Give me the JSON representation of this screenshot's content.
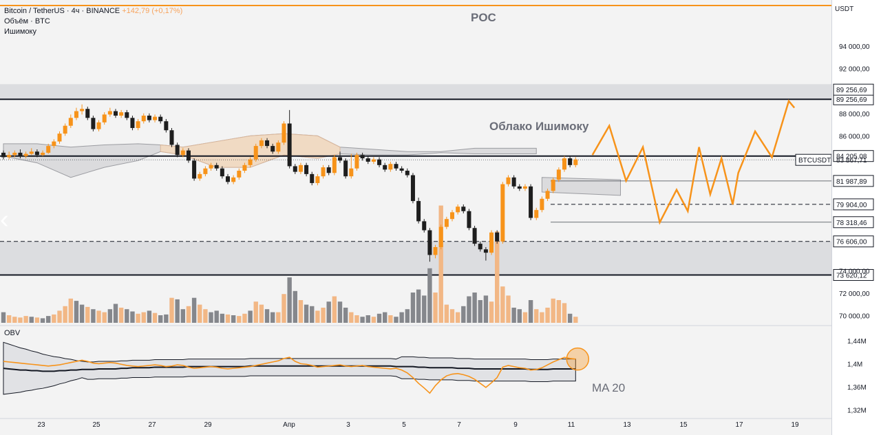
{
  "header": {
    "symbol": "Bitcoin / TetherUS · 4ч · BINANCE",
    "change": "+142,79 (+0,17%)",
    "volume_label": "Объём · BTC",
    "ichimoku_label": "Ишимоку"
  },
  "annotations": {
    "poc": "POC",
    "cloud": "Облако Ишимоку",
    "ma": "MA 20",
    "obv": "OBV"
  },
  "currency": "USDT",
  "chart_data": {
    "type": "line",
    "price_ticks": [
      "94 000,00",
      "92 000,00",
      "88 000,00",
      "86 000,00",
      "72 000,00",
      "70 000,00"
    ],
    "price_ylim": [
      69300,
      96500
    ],
    "levels": [
      {
        "value": 89256.69,
        "label": "89 256,69",
        "style": "solid"
      },
      {
        "value": 84205.08,
        "label": "84 205,08",
        "style": "solid"
      },
      {
        "value": 81987.89,
        "label": "81 987,89",
        "style": "solid"
      },
      {
        "value": 79904.0,
        "label": "79 904,00",
        "style": "dashed"
      },
      {
        "value": 78318.46,
        "label": "78 318,46",
        "style": "solid"
      },
      {
        "value": 76606.0,
        "label": "76 606,00",
        "style": "dashed"
      },
      {
        "value": 73620.12,
        "label": "73 620,12",
        "style": "solid"
      }
    ],
    "last_price": {
      "symbol": "BTCUSDT",
      "value": 83867.71,
      "label": "83 867,71"
    },
    "extra_label": "89 256,69",
    "partial_label": "74 000,00",
    "obv_ticks": [
      "1,44M",
      "1,4M",
      "1,36M",
      "1,32M"
    ],
    "obv_ylim": [
      1.31,
      1.46
    ],
    "x_ticks": [
      "23",
      "25",
      "27",
      "29",
      "Апр",
      "3",
      "5",
      "7",
      "9",
      "11",
      "13",
      "15",
      "17",
      "19"
    ],
    "candles": [
      [
        84500,
        84100,
        84700,
        83900
      ],
      [
        84100,
        84300,
        84600,
        83900
      ],
      [
        84300,
        84500,
        84700,
        84100
      ],
      [
        84500,
        84200,
        84800,
        84000
      ],
      [
        84200,
        84400,
        84600,
        84000
      ],
      [
        84400,
        84600,
        84900,
        84300
      ],
      [
        84600,
        84300,
        84800,
        84100
      ],
      [
        84300,
        84500,
        84700,
        84200
      ],
      [
        84500,
        85100,
        85300,
        84400
      ],
      [
        85100,
        85500,
        85700,
        84900
      ],
      [
        85500,
        86200,
        86400,
        85300
      ],
      [
        86200,
        86900,
        87100,
        86000
      ],
      [
        86900,
        87600,
        87900,
        86700
      ],
      [
        87600,
        88200,
        88500,
        87400
      ],
      [
        88200,
        88400,
        88800,
        87900
      ],
      [
        88400,
        87600,
        88600,
        87400
      ],
      [
        87600,
        86600,
        87800,
        86400
      ],
      [
        86600,
        87200,
        87400,
        86400
      ],
      [
        87200,
        87900,
        88100,
        87000
      ],
      [
        87900,
        88200,
        88500,
        87700
      ],
      [
        88200,
        87800,
        88400,
        87600
      ],
      [
        87800,
        88100,
        88300,
        87600
      ],
      [
        88100,
        87600,
        88300,
        87400
      ],
      [
        87600,
        86700,
        87800,
        86500
      ],
      [
        86700,
        87300,
        87500,
        86500
      ],
      [
        87300,
        87800,
        88000,
        87100
      ],
      [
        87800,
        87400,
        88000,
        87200
      ],
      [
        87400,
        87700,
        87900,
        87200
      ],
      [
        87700,
        87300,
        87900,
        87100
      ],
      [
        87300,
        86500,
        87500,
        86300
      ],
      [
        86500,
        85200,
        86700,
        85000
      ],
      [
        85200,
        84300,
        85400,
        84100
      ],
      [
        84300,
        84700,
        84900,
        84100
      ],
      [
        84700,
        83800,
        84900,
        83600
      ],
      [
        83800,
        82200,
        84000,
        82000
      ],
      [
        82200,
        82600,
        82800,
        82000
      ],
      [
        82600,
        83100,
        83300,
        82400
      ],
      [
        83100,
        83400,
        83600,
        82900
      ],
      [
        83400,
        83100,
        83600,
        82900
      ],
      [
        83100,
        82400,
        83300,
        82200
      ],
      [
        82400,
        81900,
        82600,
        81700
      ],
      [
        81900,
        82300,
        82500,
        81700
      ],
      [
        82300,
        82900,
        83100,
        82100
      ],
      [
        82900,
        83400,
        83600,
        82700
      ],
      [
        83400,
        83900,
        84100,
        83200
      ],
      [
        83900,
        85100,
        85300,
        83700
      ],
      [
        85100,
        85600,
        85800,
        84900
      ],
      [
        85600,
        85100,
        85800,
        84900
      ],
      [
        85100,
        84600,
        85300,
        84400
      ],
      [
        84600,
        85400,
        85600,
        84400
      ],
      [
        85400,
        87100,
        87300,
        85200
      ],
      [
        87100,
        83300,
        88300,
        83100
      ],
      [
        83300,
        82800,
        83500,
        82600
      ],
      [
        82800,
        83400,
        83600,
        82600
      ],
      [
        83400,
        82600,
        83600,
        82400
      ],
      [
        82600,
        81800,
        82800,
        81600
      ],
      [
        81800,
        82400,
        82600,
        81600
      ],
      [
        82400,
        83200,
        83400,
        82200
      ],
      [
        83200,
        82700,
        83400,
        82500
      ],
      [
        82700,
        84100,
        84300,
        82500
      ],
      [
        84100,
        83800,
        84600,
        83600
      ],
      [
        83800,
        82400,
        84000,
        82200
      ],
      [
        82400,
        83100,
        84400,
        82200
      ],
      [
        83100,
        84300,
        84500,
        82900
      ],
      [
        84300,
        84000,
        84500,
        83800
      ],
      [
        84000,
        83700,
        84200,
        83500
      ],
      [
        83700,
        83900,
        84100,
        83500
      ],
      [
        83900,
        83400,
        84100,
        83200
      ],
      [
        83400,
        83000,
        83600,
        82800
      ],
      [
        83000,
        83500,
        83700,
        82800
      ],
      [
        83500,
        83100,
        83700,
        82900
      ],
      [
        83100,
        82900,
        83300,
        82700
      ],
      [
        82900,
        82500,
        83100,
        82300
      ],
      [
        82500,
        80200,
        82700,
        80000
      ],
      [
        80200,
        78400,
        80500,
        78200
      ],
      [
        78400,
        77600,
        78600,
        77400
      ],
      [
        77600,
        75400,
        77800,
        74800
      ],
      [
        75400,
        76100,
        76300,
        75100
      ],
      [
        76100,
        77900,
        78100,
        75900
      ],
      [
        77900,
        78600,
        78800,
        77700
      ],
      [
        78600,
        79200,
        79400,
        78400
      ],
      [
        79200,
        79700,
        79900,
        79000
      ],
      [
        79700,
        79300,
        79900,
        79100
      ],
      [
        79300,
        77800,
        79500,
        77600
      ],
      [
        77800,
        76400,
        78000,
        76200
      ],
      [
        76400,
        75900,
        76600,
        75700
      ],
      [
        75900,
        75600,
        76100,
        74900
      ],
      [
        75600,
        77400,
        77600,
        75400
      ],
      [
        77400,
        76600,
        77600,
        76400
      ],
      [
        76600,
        81700,
        81900,
        76400
      ],
      [
        81700,
        82300,
        82500,
        81500
      ],
      [
        82300,
        81500,
        82500,
        81300
      ],
      [
        81500,
        81300,
        81700,
        81100
      ],
      [
        81300,
        81500,
        81700,
        81100
      ],
      [
        81500,
        78700,
        81700,
        78500
      ],
      [
        78700,
        79400,
        79600,
        78500
      ],
      [
        79400,
        80400,
        80600,
        79200
      ],
      [
        80400,
        81100,
        81300,
        80200
      ],
      [
        81100,
        82100,
        82300,
        80900
      ],
      [
        82100,
        83000,
        83200,
        81900
      ],
      [
        83000,
        84000,
        84200,
        82800
      ],
      [
        84000,
        83400,
        84200,
        83200
      ],
      [
        83400,
        83900,
        84100,
        83200
      ]
    ],
    "volume": [
      [
        0.14,
        "dn"
      ],
      [
        0.1,
        "up"
      ],
      [
        0.08,
        "up"
      ],
      [
        0.07,
        "up"
      ],
      [
        0.09,
        "up"
      ],
      [
        0.08,
        "dn"
      ],
      [
        0.07,
        "up"
      ],
      [
        0.06,
        "dn"
      ],
      [
        0.09,
        "dn"
      ],
      [
        0.11,
        "up"
      ],
      [
        0.16,
        "up"
      ],
      [
        0.22,
        "up"
      ],
      [
        0.32,
        "up"
      ],
      [
        0.29,
        "dn"
      ],
      [
        0.24,
        "dn"
      ],
      [
        0.21,
        "up"
      ],
      [
        0.18,
        "dn"
      ],
      [
        0.16,
        "up"
      ],
      [
        0.14,
        "up"
      ],
      [
        0.18,
        "dn"
      ],
      [
        0.25,
        "dn"
      ],
      [
        0.2,
        "up"
      ],
      [
        0.18,
        "dn"
      ],
      [
        0.15,
        "dn"
      ],
      [
        0.12,
        "up"
      ],
      [
        0.14,
        "up"
      ],
      [
        0.16,
        "dn"
      ],
      [
        0.13,
        "up"
      ],
      [
        0.1,
        "dn"
      ],
      [
        0.11,
        "dn"
      ],
      [
        0.33,
        "up"
      ],
      [
        0.31,
        "dn"
      ],
      [
        0.18,
        "dn"
      ],
      [
        0.22,
        "up"
      ],
      [
        0.33,
        "dn"
      ],
      [
        0.24,
        "up"
      ],
      [
        0.18,
        "up"
      ],
      [
        0.14,
        "dn"
      ],
      [
        0.16,
        "dn"
      ],
      [
        0.12,
        "dn"
      ],
      [
        0.11,
        "up"
      ],
      [
        0.1,
        "dn"
      ],
      [
        0.09,
        "up"
      ],
      [
        0.12,
        "up"
      ],
      [
        0.16,
        "dn"
      ],
      [
        0.28,
        "up"
      ],
      [
        0.24,
        "up"
      ],
      [
        0.18,
        "dn"
      ],
      [
        0.14,
        "dn"
      ],
      [
        0.14,
        "up"
      ],
      [
        0.38,
        "up"
      ],
      [
        0.6,
        "dn"
      ],
      [
        0.42,
        "dn"
      ],
      [
        0.3,
        "up"
      ],
      [
        0.24,
        "dn"
      ],
      [
        0.22,
        "dn"
      ],
      [
        0.16,
        "up"
      ],
      [
        0.2,
        "up"
      ],
      [
        0.28,
        "dn"
      ],
      [
        0.35,
        "up"
      ],
      [
        0.28,
        "dn"
      ],
      [
        0.2,
        "dn"
      ],
      [
        0.14,
        "up"
      ],
      [
        0.1,
        "up"
      ],
      [
        0.08,
        "dn"
      ],
      [
        0.1,
        "dn"
      ],
      [
        0.08,
        "up"
      ],
      [
        0.12,
        "dn"
      ],
      [
        0.14,
        "dn"
      ],
      [
        0.1,
        "up"
      ],
      [
        0.08,
        "dn"
      ],
      [
        0.14,
        "dn"
      ],
      [
        0.18,
        "dn"
      ],
      [
        0.4,
        "dn"
      ],
      [
        0.44,
        "dn"
      ],
      [
        0.36,
        "dn"
      ],
      [
        0.72,
        "dn"
      ],
      [
        0.4,
        "up"
      ],
      [
        0.3,
        "up"
      ],
      [
        0.24,
        "up"
      ],
      [
        0.18,
        "up"
      ],
      [
        0.14,
        "up"
      ],
      [
        0.22,
        "dn"
      ],
      [
        0.35,
        "dn"
      ],
      [
        0.4,
        "dn"
      ],
      [
        0.3,
        "dn"
      ],
      [
        0.36,
        "dn"
      ],
      [
        0.28,
        "up"
      ],
      [
        0.24,
        "dn"
      ],
      [
        0.48,
        "up"
      ],
      [
        0.36,
        "up"
      ],
      [
        0.2,
        "dn"
      ],
      [
        0.18,
        "dn"
      ],
      [
        0.14,
        "up"
      ],
      [
        0.3,
        "dn"
      ],
      [
        0.18,
        "up"
      ],
      [
        0.14,
        "up"
      ],
      [
        0.2,
        "up"
      ],
      [
        0.32,
        "up"
      ],
      [
        0.3,
        "up"
      ],
      [
        0.26,
        "up"
      ],
      [
        0.12,
        "dn"
      ],
      [
        0.08,
        "up"
      ]
    ],
    "poc_bars": [
      {
        "candle_index": 78,
        "top_price": 79800,
        "style": "up"
      },
      {
        "candle_index": 88,
        "top_price": 77500,
        "style": "up"
      }
    ],
    "cloud_points": [
      [
        0,
        85300,
        84200
      ],
      [
        6,
        85300,
        83600
      ],
      [
        12,
        85000,
        82300
      ],
      [
        18,
        85200,
        83200
      ],
      [
        24,
        85300,
        83800
      ],
      [
        28,
        85200,
        84600
      ],
      [
        32,
        85000,
        84300
      ],
      [
        38,
        85500,
        83200
      ],
      [
        44,
        86000,
        83200
      ],
      [
        50,
        86200,
        84300
      ],
      [
        56,
        86000,
        84000
      ],
      [
        60,
        85000,
        84400
      ],
      [
        66,
        84800,
        84300
      ],
      [
        72,
        84600,
        84300
      ],
      [
        78,
        84600,
        84500
      ],
      [
        84,
        84900,
        84400
      ],
      [
        90,
        84900,
        84400
      ],
      [
        95,
        84900,
        84400
      ],
      [
        96,
        82300,
        81000
      ],
      [
        110,
        82100,
        80700
      ]
    ],
    "projection_x_index": [
      105,
      108,
      111,
      114,
      117,
      120,
      122,
      124,
      126,
      128,
      130,
      131,
      134,
      137,
      140,
      141
    ],
    "projection": [
      84300,
      86900,
      82000,
      85000,
      78300,
      81200,
      79300,
      85000,
      80800,
      84000,
      79900,
      82700,
      86400,
      84100,
      89100,
      88500
    ],
    "obv": [
      1.404,
      1.403,
      1.402,
      1.401,
      1.4,
      1.399,
      1.398,
      1.397,
      1.396,
      1.397,
      1.398,
      1.4,
      1.402,
      1.404,
      1.406,
      1.404,
      1.401,
      1.4,
      1.401,
      1.402,
      1.401,
      1.399,
      1.397,
      1.396,
      1.395,
      1.396,
      1.397,
      1.398,
      1.397,
      1.395,
      1.396,
      1.398,
      1.397,
      1.394,
      1.392,
      1.393,
      1.394,
      1.395,
      1.394,
      1.392,
      1.391,
      1.392,
      1.393,
      1.394,
      1.395,
      1.397,
      1.399,
      1.401,
      1.403,
      1.405,
      1.409,
      1.411,
      1.404,
      1.4,
      1.399,
      1.397,
      1.394,
      1.395,
      1.396,
      1.397,
      1.398,
      1.396,
      1.395,
      1.396,
      1.397,
      1.395,
      1.394,
      1.393,
      1.392,
      1.391,
      1.392,
      1.389,
      1.384,
      1.376,
      1.366,
      1.358,
      1.349,
      1.362,
      1.372,
      1.379,
      1.382,
      1.383,
      1.381,
      1.378,
      1.373,
      1.366,
      1.359,
      1.367,
      1.376,
      1.394,
      1.397,
      1.395,
      1.393,
      1.392,
      1.389,
      1.39,
      1.393,
      1.398,
      1.403,
      1.407,
      1.411,
      1.409,
      1.408
    ],
    "obv_ma20": [
      1.392,
      1.391,
      1.39,
      1.389,
      1.389,
      1.388,
      1.388,
      1.387,
      1.387,
      1.387,
      1.388,
      1.388,
      1.389,
      1.389,
      1.39,
      1.39,
      1.39,
      1.391,
      1.391,
      1.391,
      1.391,
      1.392,
      1.392,
      1.393,
      1.393,
      1.393,
      1.393,
      1.394,
      1.394,
      1.394,
      1.394,
      1.394,
      1.394,
      1.395,
      1.395,
      1.395,
      1.395,
      1.395,
      1.395,
      1.395,
      1.395,
      1.395,
      1.395,
      1.395,
      1.396,
      1.396,
      1.396,
      1.396,
      1.396,
      1.396,
      1.396,
      1.396,
      1.396,
      1.396,
      1.396,
      1.396,
      1.396,
      1.396,
      1.396,
      1.396,
      1.396,
      1.396,
      1.396,
      1.396,
      1.396,
      1.396,
      1.396,
      1.396,
      1.396,
      1.396,
      1.395,
      1.395,
      1.395,
      1.395,
      1.394,
      1.394,
      1.393,
      1.393,
      1.393,
      1.393,
      1.393,
      1.392,
      1.392,
      1.392,
      1.391,
      1.391,
      1.391,
      1.391,
      1.391,
      1.391,
      1.391,
      1.391,
      1.391,
      1.391,
      1.39,
      1.39,
      1.39,
      1.39,
      1.391,
      1.391,
      1.391,
      1.391,
      1.391
    ]
  }
}
